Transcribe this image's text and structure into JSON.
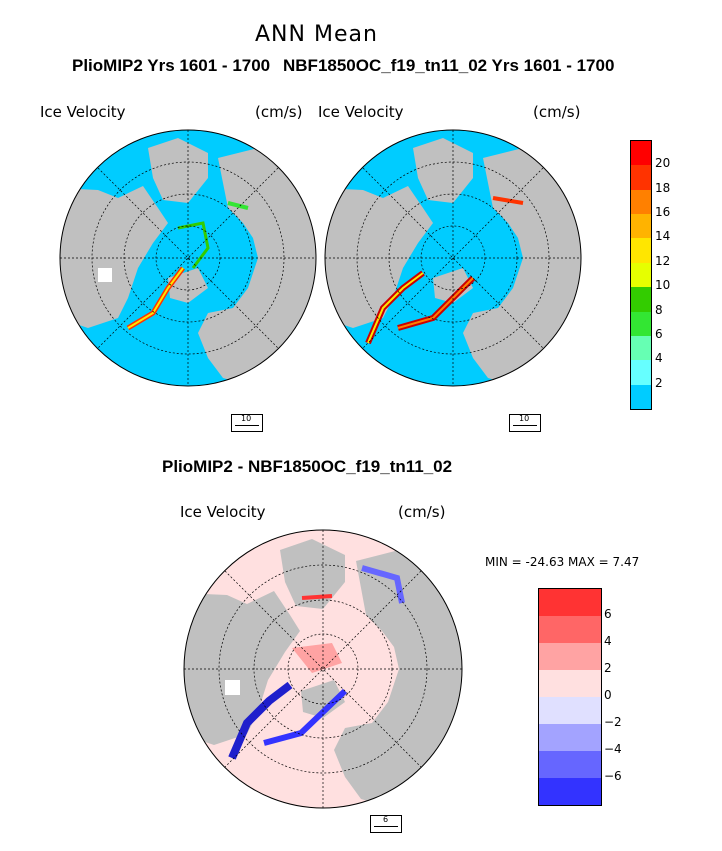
{
  "page": {
    "title": "ANN Mean",
    "panel_left_title": "PlioMIP2  Yrs 1601 - 1700",
    "panel_right_title": "NBF1850OC_f19_tn11_02  Yrs 1601 - 1700",
    "diff_title": "PlioMIP2 - NBF1850OC_f19_tn11_02",
    "variable_label": "Ice Velocity",
    "units_label": "(cm/s)",
    "minmax_label": "MIN =  -24.63  MAX =    7.47"
  },
  "reference_vectors": {
    "top_left": "10",
    "top_right": "10",
    "bottom": "6"
  },
  "colorbar_top": {
    "labels": [
      "20",
      "18",
      "16",
      "14",
      "12",
      "10",
      "8",
      "6",
      "4",
      "2"
    ],
    "colors": [
      "#ff0000",
      "#ff3300",
      "#ff8000",
      "#ffb300",
      "#ffe600",
      "#e6ff00",
      "#33cc00",
      "#33e633",
      "#66ffb3",
      "#66ffff",
      "#00ccff"
    ]
  },
  "colorbar_diff": {
    "labels": [
      "6",
      "4",
      "2",
      "0",
      "−2",
      "−4",
      "−6"
    ],
    "colors": [
      "#ff3333",
      "#ff6666",
      "#ffa3a3",
      "#ffe0e0",
      "#e0e0ff",
      "#a3a3ff",
      "#6666ff",
      "#3333ff"
    ]
  },
  "colors": {
    "ocean": "#00ccff",
    "land": "#c0c0c0",
    "diff_ocean": "#ffe0e0"
  }
}
